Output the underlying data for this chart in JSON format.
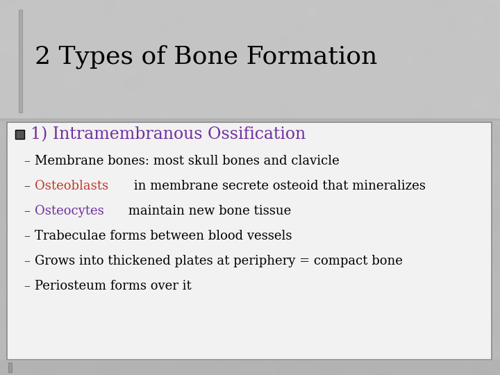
{
  "title": "2 Types of Bone Formation",
  "title_color": "#000000",
  "title_fontsize": 26,
  "title_font": "serif",
  "slide_bg": "#b8b8b8",
  "title_area_bg": "#c8c8c8",
  "content_bg": "#f2f2f2",
  "content_border_color": "#888888",
  "bullet_header": "1) Intramembranous Ossification",
  "bullet_header_color": "#7030a0",
  "bullet_marker_color": "#555555",
  "sub_bullets": [
    {
      "parts": [
        {
          "text": "Membrane bones: most skull bones and clavicle",
          "color": "#000000"
        }
      ]
    },
    {
      "parts": [
        {
          "text": "Osteoblasts",
          "color": "#c0392b"
        },
        {
          "text": " in membrane secrete osteoid that mineralizes",
          "color": "#000000"
        }
      ]
    },
    {
      "parts": [
        {
          "text": "Osteocytes",
          "color": "#7030a0"
        },
        {
          "text": " maintain new bone tissue",
          "color": "#000000"
        }
      ]
    },
    {
      "parts": [
        {
          "text": "Trabeculae forms between blood vessels",
          "color": "#000000"
        }
      ]
    },
    {
      "parts": [
        {
          "text": "Grows into thickened plates at periphery = compact bone",
          "color": "#000000"
        }
      ]
    },
    {
      "parts": [
        {
          "text": "Periosteum forms over it",
          "color": "#000000"
        }
      ]
    }
  ],
  "sub_bullet_fontsize": 13,
  "bullet_header_fontsize": 17,
  "dash_color": "#333333"
}
